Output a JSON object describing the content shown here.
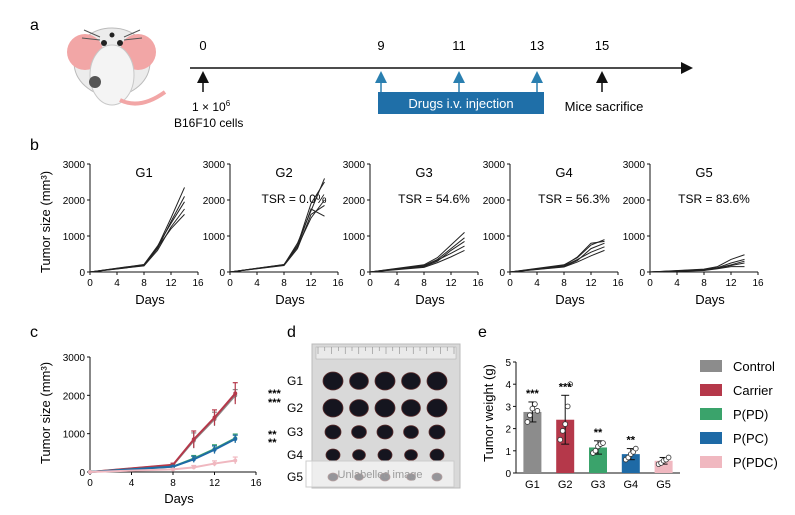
{
  "panel_a": {
    "label": "a",
    "timeline_days": [
      "0",
      "9",
      "11",
      "13",
      "15"
    ],
    "inoculation_line1": "1 × 10",
    "inoculation_sup": "6",
    "inoculation_line2": "B16F10 cells",
    "injection_label": "Drugs i.v. injection",
    "sacrifice_label": "Mice sacrifice",
    "colors": {
      "timeline": "#111111",
      "injection_arrow": "#2a7fb0",
      "injection_box": "#1f6fa8"
    }
  },
  "chart_data": [
    {
      "id": "b-G1",
      "type": "line",
      "panel_label": "b",
      "title": "G1",
      "annotation": "",
      "xlabel": "Days",
      "ylabel": "Tumor size (mm³)",
      "xlim": [
        0,
        16
      ],
      "ylim": [
        0,
        3000
      ],
      "xticks": [
        "0",
        "4",
        "8",
        "12",
        "16"
      ],
      "yticks": [
        "0",
        "1000",
        "2000",
        "3000"
      ],
      "x": [
        0,
        8,
        10,
        12,
        14
      ],
      "series": [
        {
          "values": [
            0,
            200,
            700,
            1500,
            2350
          ]
        },
        {
          "values": [
            0,
            180,
            650,
            1400,
            2100
          ]
        },
        {
          "values": [
            0,
            210,
            720,
            1350,
            1950
          ]
        },
        {
          "values": [
            0,
            170,
            600,
            1250,
            1750
          ]
        },
        {
          "values": [
            0,
            190,
            680,
            1200,
            1600
          ]
        }
      ]
    },
    {
      "id": "b-G2",
      "type": "line",
      "title": "G2",
      "annotation": "TSR = 0.0%",
      "xlabel": "Days",
      "xlim": [
        0,
        16
      ],
      "ylim": [
        0,
        3000
      ],
      "xticks": [
        "0",
        "4",
        "8",
        "12",
        "16"
      ],
      "yticks": [
        "0",
        "1000",
        "2000",
        "3000"
      ],
      "x": [
        0,
        8,
        10,
        12,
        14
      ],
      "series": [
        {
          "values": [
            0,
            200,
            800,
            1700,
            2600
          ]
        },
        {
          "values": [
            0,
            190,
            750,
            1900,
            2500
          ]
        },
        {
          "values": [
            0,
            210,
            700,
            1500,
            2000
          ]
        },
        {
          "values": [
            0,
            180,
            650,
            1600,
            1850
          ]
        },
        {
          "values": [
            0,
            200,
            700,
            1750,
            1550
          ]
        }
      ]
    },
    {
      "id": "b-G3",
      "type": "line",
      "title": "G3",
      "annotation": "TSR = 54.6%",
      "xlabel": "Days",
      "xlim": [
        0,
        16
      ],
      "ylim": [
        0,
        3000
      ],
      "xticks": [
        "0",
        "4",
        "8",
        "12",
        "16"
      ],
      "yticks": [
        "0",
        "1000",
        "2000",
        "3000"
      ],
      "x": [
        0,
        8,
        10,
        12,
        14
      ],
      "series": [
        {
          "values": [
            0,
            200,
            400,
            750,
            1100
          ]
        },
        {
          "values": [
            0,
            180,
            350,
            650,
            950
          ]
        },
        {
          "values": [
            0,
            150,
            300,
            600,
            850
          ]
        },
        {
          "values": [
            0,
            170,
            330,
            520,
            720
          ]
        },
        {
          "values": [
            0,
            130,
            260,
            420,
            600
          ]
        }
      ]
    },
    {
      "id": "b-G4",
      "type": "line",
      "title": "G4",
      "annotation": "TSR = 56.3%",
      "xlabel": "Days",
      "xlim": [
        0,
        16
      ],
      "ylim": [
        0,
        3000
      ],
      "xticks": [
        "0",
        "4",
        "8",
        "12",
        "16"
      ],
      "yticks": [
        "0",
        "1000",
        "2000",
        "3000"
      ],
      "x": [
        0,
        8,
        10,
        12,
        14
      ],
      "series": [
        {
          "values": [
            0,
            200,
            400,
            750,
            900
          ]
        },
        {
          "values": [
            0,
            180,
            420,
            800,
            850
          ]
        },
        {
          "values": [
            0,
            150,
            320,
            650,
            800
          ]
        },
        {
          "values": [
            0,
            170,
            350,
            550,
            700
          ]
        },
        {
          "values": [
            0,
            140,
            280,
            450,
            600
          ]
        }
      ]
    },
    {
      "id": "b-G5",
      "type": "line",
      "title": "G5",
      "annotation": "TSR = 83.6%",
      "xlabel": "Days",
      "xlim": [
        0,
        16
      ],
      "ylim": [
        0,
        3000
      ],
      "xticks": [
        "0",
        "4",
        "8",
        "12",
        "16"
      ],
      "yticks": [
        "0",
        "1000",
        "2000",
        "3000"
      ],
      "x": [
        0,
        8,
        10,
        12,
        14
      ],
      "series": [
        {
          "values": [
            0,
            80,
            150,
            350,
            480
          ]
        },
        {
          "values": [
            0,
            70,
            120,
            250,
            350
          ]
        },
        {
          "values": [
            0,
            60,
            110,
            200,
            300
          ]
        },
        {
          "values": [
            0,
            50,
            100,
            180,
            250
          ]
        },
        {
          "values": [
            0,
            40,
            90,
            150,
            150
          ]
        }
      ]
    },
    {
      "id": "c",
      "type": "line",
      "panel_label": "c",
      "xlabel": "Days",
      "ylabel": "Tumor size (mm³)",
      "xlim": [
        0,
        16
      ],
      "ylim": [
        0,
        3000
      ],
      "xticks": [
        "0",
        "4",
        "8",
        "12",
        "16"
      ],
      "yticks": [
        "0",
        "1000",
        "2000",
        "3000"
      ],
      "x": [
        0,
        8,
        10,
        12,
        14
      ],
      "series": [
        {
          "color": "#8c8c8c",
          "values": [
            0,
            180,
            820,
            1380,
            2000
          ],
          "err": [
            0,
            40,
            200,
            180,
            150
          ],
          "sig": "***"
        },
        {
          "color": "#b5384a",
          "values": [
            0,
            190,
            850,
            1420,
            2050
          ],
          "err": [
            0,
            40,
            220,
            200,
            280
          ],
          "sig": "***"
        },
        {
          "color": "#3aa36b",
          "values": [
            0,
            140,
            350,
            600,
            880
          ],
          "err": [
            0,
            30,
            80,
            110,
            110
          ],
          "sig": "**"
        },
        {
          "color": "#1e6aa6",
          "values": [
            0,
            140,
            330,
            580,
            860
          ],
          "err": [
            0,
            30,
            80,
            100,
            100
          ],
          "sig": "**"
        },
        {
          "color": "#f0b8c0",
          "values": [
            0,
            70,
            120,
            220,
            300
          ],
          "err": [
            0,
            20,
            50,
            70,
            90
          ],
          "sig": ""
        }
      ]
    },
    {
      "id": "e",
      "type": "bar",
      "panel_label": "e",
      "ylabel": "Tumor weight (g)",
      "ylim": [
        0,
        5
      ],
      "yticks": [
        "0",
        "1",
        "2",
        "3",
        "4",
        "5"
      ],
      "categories": [
        "G1",
        "G2",
        "G3",
        "G4",
        "G5"
      ],
      "values": [
        2.75,
        2.4,
        1.15,
        0.85,
        0.55
      ],
      "err": [
        0.45,
        1.1,
        0.3,
        0.25,
        0.15
      ],
      "sig": [
        "***",
        "***",
        "**",
        "**",
        ""
      ],
      "points": [
        [
          2.3,
          2.6,
          2.9,
          3.1,
          2.8
        ],
        [
          1.5,
          1.9,
          2.2,
          3.0,
          4.0
        ],
        [
          0.9,
          1.0,
          1.2,
          1.3,
          1.35
        ],
        [
          0.6,
          0.7,
          0.85,
          0.95,
          1.1
        ],
        [
          0.4,
          0.45,
          0.55,
          0.6,
          0.7
        ]
      ],
      "colors": [
        "#8c8c8c",
        "#b5384a",
        "#3aa36b",
        "#1e6aa6",
        "#f0b8c0"
      ]
    }
  ],
  "legend": [
    {
      "label": "Control",
      "color": "#8c8c8c"
    },
    {
      "label": "Carrier",
      "color": "#b5384a"
    },
    {
      "label": "P(PD)",
      "color": "#3aa36b"
    },
    {
      "label": "P(PC)",
      "color": "#1e6aa6"
    },
    {
      "label": "P(PDC)",
      "color": "#f0b8c0"
    }
  ],
  "panel_d": {
    "label": "d",
    "rows": [
      "G1",
      "G2",
      "G3",
      "G4",
      "G5"
    ],
    "watermark": "Unlabelled image"
  }
}
